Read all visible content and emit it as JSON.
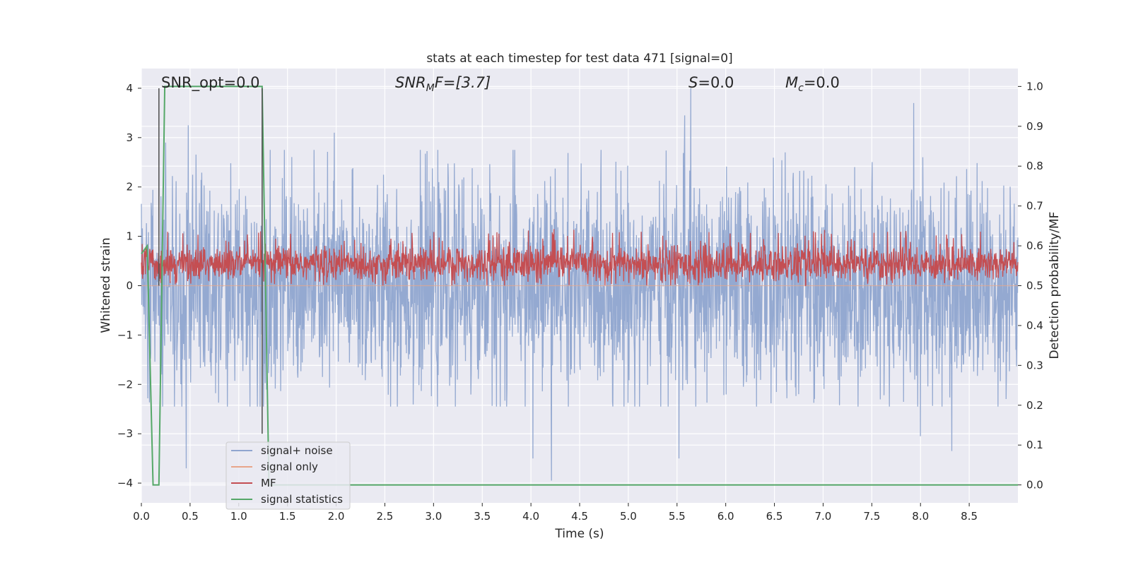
{
  "chart_data": {
    "type": "line",
    "title": "stats at each timestep for test data 471 [signal=0]",
    "xlabel": "Time (s)",
    "ylabel_left": "Whitened strain",
    "ylabel_right": "Detection probability/MF",
    "xlim": [
      0.0,
      9.0
    ],
    "ylim_left": [
      -4.4,
      4.4
    ],
    "ylim_right": [
      -0.045,
      1.045
    ],
    "x_ticks": [
      "0.0",
      "0.5",
      "1.0",
      "1.5",
      "2.0",
      "2.5",
      "3.0",
      "3.5",
      "4.0",
      "4.5",
      "5.0",
      "5.5",
      "6.0",
      "6.5",
      "7.0",
      "7.5",
      "8.0",
      "8.5"
    ],
    "y_ticks_left": [
      "−4",
      "−3",
      "−2",
      "−1",
      "0",
      "1",
      "2",
      "3",
      "4"
    ],
    "y_ticks_right": [
      "0.0",
      "0.1",
      "0.2",
      "0.3",
      "0.4",
      "0.5",
      "0.6",
      "0.7",
      "0.8",
      "0.9",
      "1.0"
    ],
    "grid": true,
    "legend_position": "lower-left",
    "annotations": {
      "snr_opt": "SNR_opt=0.0",
      "snr_mf_prefix": "SNR",
      "snr_mf_sub": "M",
      "snr_mf_rest": "F=[3.7]",
      "s_label": "S",
      "s_rest": "=0.0",
      "mc_label": "M",
      "mc_sub": "c",
      "mc_rest": "=0.0"
    },
    "series": [
      {
        "name": "signal+ noise",
        "axis": "left",
        "color": "#8fa5cf",
        "description_level": "dense noise, roughly within [-2.4, 2.8], peaks up to 4.0 and down to -3.9",
        "peaks": [
          [
            0.48,
            3.25
          ],
          [
            5.58,
            3.45
          ],
          [
            5.64,
            4.0
          ],
          [
            7.93,
            3.7
          ],
          [
            4.21,
            -3.95
          ],
          [
            0.46,
            -3.7
          ],
          [
            5.52,
            -3.5
          ],
          [
            8.32,
            -3.35
          ],
          [
            4.02,
            -3.5
          ],
          [
            0.25,
            2.9
          ],
          [
            1.98,
            3.1
          ],
          [
            8.0,
            -3.05
          ]
        ]
      },
      {
        "name": "signal only",
        "axis": "left",
        "color": "#e8a58a",
        "constant_value": 0.0
      },
      {
        "name": "MF",
        "axis": "right",
        "color": "#c44e52",
        "description_level": "band from about 0.50 to 0.62, occasional spikes near 0.64"
      },
      {
        "name": "signal statistics",
        "axis": "right",
        "color": "#55a868",
        "x": [
          0.0,
          0.06,
          0.12,
          0.18,
          0.24,
          0.27,
          1.19,
          1.24,
          1.31,
          9.0
        ],
        "y": [
          0.58,
          0.6,
          0.0,
          0.0,
          1.0,
          1.0,
          1.0,
          1.0,
          0.0,
          0.0
        ]
      }
    ],
    "markers": [
      {
        "x": 0.18,
        "color": "#555555",
        "ylim_left": [
          0.0,
          4.0
        ]
      },
      {
        "x": 1.24,
        "color": "#555555",
        "ylim_left": [
          -3.0,
          4.0
        ]
      }
    ]
  },
  "colors": {
    "axes_bg": "#eaeaf2",
    "grid": "#ffffff",
    "noise": "#8fa5cf",
    "signal": "#e8a58a",
    "mf": "#c44e52",
    "stats": "#55a868",
    "marker": "#555555"
  }
}
